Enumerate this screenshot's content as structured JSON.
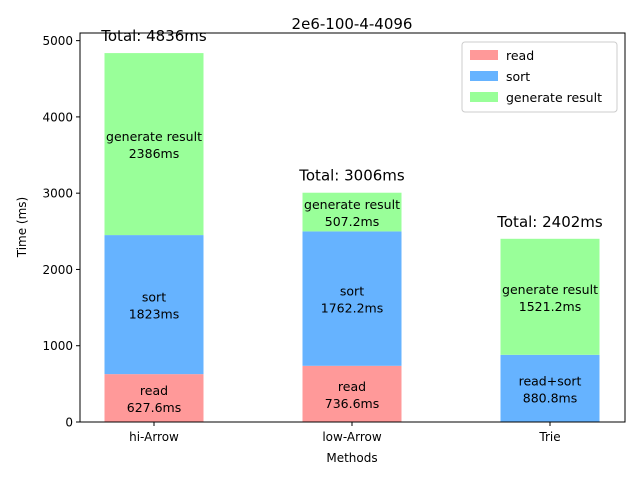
{
  "chart_data": {
    "type": "bar",
    "stacked": true,
    "title": "2e6-100-4-4096",
    "xlabel": "Methods",
    "ylabel": "Time (ms)",
    "ylim": [
      0,
      5100
    ],
    "yticks": [
      0,
      1000,
      2000,
      3000,
      4000,
      5000
    ],
    "ytick_labels": [
      "0",
      "1000",
      "2000",
      "3000",
      "4000",
      "5000"
    ],
    "categories": [
      "hi-Arrow",
      "low-Arrow",
      "Trie"
    ],
    "grid": false,
    "legend_position": "top-right",
    "series": [
      {
        "name": "read",
        "color": "#ff9999",
        "values": [
          627.6,
          736.6,
          0
        ],
        "labels": [
          [
            "read",
            "627.6ms"
          ],
          [
            "read",
            "736.6ms"
          ],
          null
        ]
      },
      {
        "name": "sort",
        "color": "#66b3ff",
        "values": [
          1823,
          1762.2,
          880.8
        ],
        "labels": [
          [
            "sort",
            "1823ms"
          ],
          [
            "sort",
            "1762.2ms"
          ],
          [
            "read+sort",
            "880.8ms"
          ]
        ]
      },
      {
        "name": "generate result",
        "color": "#99ff99",
        "values": [
          2386,
          507.2,
          1521.2
        ],
        "labels": [
          [
            "generate result",
            "2386ms"
          ],
          [
            "generate result",
            "507.2ms"
          ],
          [
            "generate result",
            "1521.2ms"
          ]
        ]
      }
    ],
    "totals": [
      "Total: 4836ms",
      "Total: 3006ms",
      "Total: 2402ms"
    ]
  }
}
